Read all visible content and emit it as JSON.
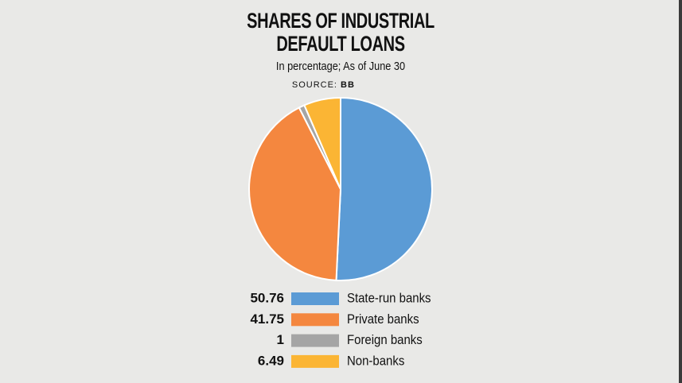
{
  "chart_data": {
    "type": "pie",
    "title": "SHARES OF INDUSTRIAL DEFAULT LOANS",
    "subtitle": "In percentage; As of June 30",
    "source_label": "SOURCE:",
    "source": "BB",
    "categories": [
      "State-run banks",
      "Private banks",
      "Foreign banks",
      "Non-banks"
    ],
    "values": [
      50.76,
      41.75,
      1,
      6.49
    ],
    "colors": [
      "#5b9bd5",
      "#f4873f",
      "#a5a5a5",
      "#fbb534"
    ]
  }
}
